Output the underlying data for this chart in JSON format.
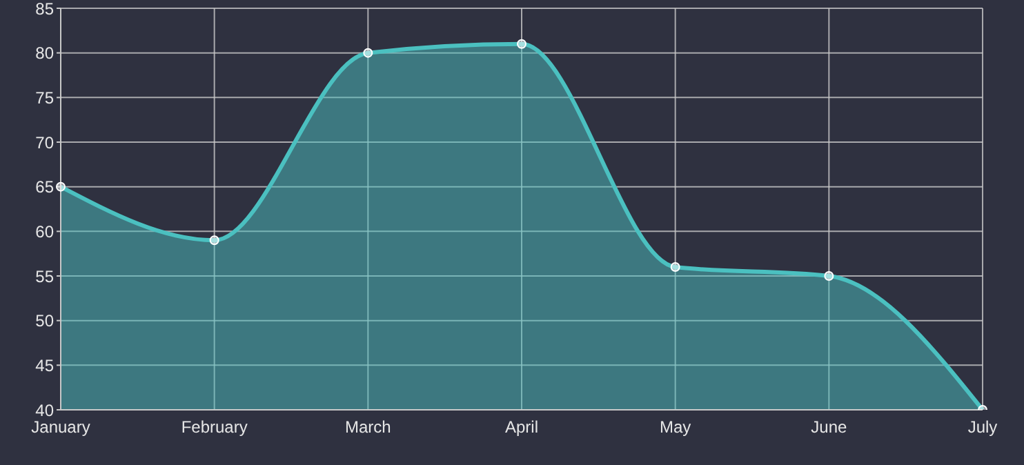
{
  "chart_data": {
    "type": "area",
    "categories": [
      "January",
      "February",
      "March",
      "April",
      "May",
      "June",
      "July"
    ],
    "series": [
      {
        "color": "#4bc0c0",
        "values": [
          65,
          59,
          80,
          81,
          56,
          55,
          40
        ]
      }
    ],
    "ylim": [
      40,
      85
    ],
    "yticks": [
      40,
      45,
      50,
      55,
      60,
      65,
      70,
      75,
      80,
      85
    ],
    "grid": true,
    "marker": "circle",
    "line_style": "solid"
  }
}
